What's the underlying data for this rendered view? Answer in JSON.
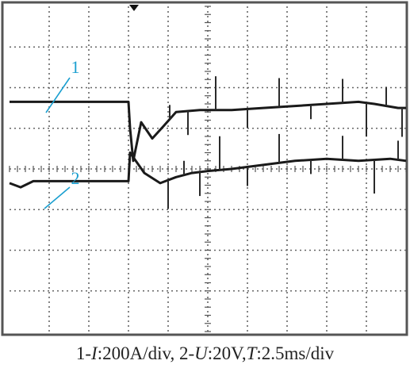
{
  "chart_data": {
    "type": "line",
    "title": "",
    "caption": {
      "p1": "1-",
      "i": "I",
      "p2": ":200A/div, 2-",
      "u": "U",
      "p3": ":20V,",
      "t": "T",
      "p4": ":2.5ms/div"
    },
    "time_per_div_ms": 2.5,
    "divisions": {
      "x": 10,
      "y": 8
    },
    "xlim": [
      0,
      25
    ],
    "ylim": [
      0,
      8
    ],
    "trigger_time_ms": 7.5,
    "grid": true,
    "series": [
      {
        "name": "1",
        "x": [
          0,
          7.5,
          7.6,
          7.8,
          8.3,
          9.0,
          9.7,
          10.5,
          12,
          14,
          16,
          18,
          20,
          22,
          23,
          24.5,
          25
        ],
        "y": [
          5.65,
          5.65,
          5.0,
          4.2,
          5.15,
          4.75,
          5.05,
          5.4,
          5.45,
          5.45,
          5.5,
          5.55,
          5.6,
          5.65,
          5.6,
          5.5,
          5.5
        ]
      },
      {
        "name": "2",
        "x": [
          0,
          0.7,
          1.5,
          7.5,
          7.6,
          8.5,
          9.5,
          10.5,
          11.5,
          12.5,
          14,
          16,
          18,
          20,
          22,
          24,
          25
        ],
        "y": [
          3.65,
          3.55,
          3.7,
          3.7,
          4.4,
          3.9,
          3.65,
          3.8,
          3.9,
          3.95,
          4.0,
          4.1,
          4.2,
          4.25,
          4.2,
          4.25,
          4.2
        ]
      }
    ],
    "annotations": [
      {
        "label": "1",
        "color": "#1a9fd0"
      },
      {
        "label": "2",
        "color": "#1a9fd0"
      }
    ]
  }
}
